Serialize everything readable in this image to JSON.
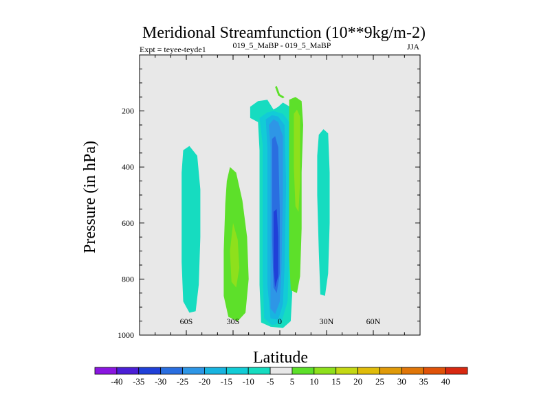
{
  "chart_data": {
    "type": "contour",
    "title": "Meridional Streamfunction (10**9kg/m-2)",
    "left_string": "Expt = teyee-teyde1",
    "center_string": "019_5_MaBP - 019_5_MaBP",
    "right_string": "JJA",
    "xlabel": "Latitude",
    "ylabel": "Pressure (in hPa)",
    "xlim": [
      -90,
      90
    ],
    "ylim": [
      1000,
      0
    ],
    "x_ticks": [
      {
        "value": -60,
        "label": "60S"
      },
      {
        "value": -30,
        "label": "30S"
      },
      {
        "value": 0,
        "label": "0"
      },
      {
        "value": 30,
        "label": "30N"
      },
      {
        "value": 60,
        "label": "60N"
      }
    ],
    "y_ticks": [
      {
        "value": 200,
        "label": "200"
      },
      {
        "value": 400,
        "label": "400"
      },
      {
        "value": 600,
        "label": "600"
      },
      {
        "value": 800,
        "label": "800"
      },
      {
        "value": 1000,
        "label": "1000"
      }
    ],
    "x_minor_step": 10,
    "y_minor_step": 50,
    "plot_background": "#e8e8e8",
    "colorbar": {
      "levels": [
        -40,
        -35,
        -30,
        -25,
        -20,
        -15,
        -10,
        -5,
        5,
        10,
        15,
        20,
        25,
        30,
        35,
        40
      ],
      "colors": [
        "#8a16e0",
        "#4b1fd6",
        "#2040d8",
        "#2a6ee0",
        "#2e96e6",
        "#18b4e0",
        "#12ccd6",
        "#16dcc0",
        "#e8e8e8",
        "#5de02a",
        "#8ee01c",
        "#c4d814",
        "#e0bc0a",
        "#e09a08",
        "#e07608",
        "#e05208",
        "#d82810"
      ]
    },
    "regions": [
      {
        "name": "cell-60s",
        "level_color": "#16dcc0",
        "points": [
          [
            -62,
            340
          ],
          [
            -58,
            325
          ],
          [
            -53,
            360
          ],
          [
            -51,
            480
          ],
          [
            -51,
            650
          ],
          [
            -52,
            820
          ],
          [
            -54,
            915
          ],
          [
            -58,
            920
          ],
          [
            -62,
            880
          ],
          [
            -63,
            740
          ],
          [
            -63,
            560
          ],
          [
            -63,
            420
          ]
        ]
      },
      {
        "name": "cell-30s",
        "level_color": "#5de02a",
        "points": [
          [
            -32,
            400
          ],
          [
            -28,
            420
          ],
          [
            -24,
            520
          ],
          [
            -21,
            650
          ],
          [
            -20,
            800
          ],
          [
            -22,
            920
          ],
          [
            -27,
            950
          ],
          [
            -33,
            935
          ],
          [
            -36,
            860
          ],
          [
            -36,
            700
          ],
          [
            -35,
            530
          ],
          [
            -34,
            450
          ]
        ]
      },
      {
        "name": "cell-30s-core",
        "level_color": "#8ee01c",
        "points": [
          [
            -30,
            600
          ],
          [
            -27,
            660
          ],
          [
            -26,
            760
          ],
          [
            -28,
            830
          ],
          [
            -31,
            810
          ],
          [
            -32,
            700
          ]
        ]
      },
      {
        "name": "hadley-south-10",
        "level_color": "#16dcc0",
        "points": [
          [
            -19,
            185
          ],
          [
            -14,
            165
          ],
          [
            -8,
            160
          ],
          [
            -4,
            195
          ],
          [
            -1,
            185
          ],
          [
            2,
            170
          ],
          [
            8,
            190
          ],
          [
            10,
            230
          ],
          [
            8,
            430
          ],
          [
            7,
            700
          ],
          [
            8,
            850
          ],
          [
            7,
            950
          ],
          [
            2,
            975
          ],
          [
            -6,
            970
          ],
          [
            -12,
            955
          ],
          [
            -13,
            820
          ],
          [
            -13,
            560
          ],
          [
            -13,
            340
          ],
          [
            -14,
            240
          ],
          [
            -19,
            225
          ]
        ]
      },
      {
        "name": "hadley-south-15",
        "level_color": "#12ccd6",
        "points": [
          [
            -13,
            225
          ],
          [
            -8,
            205
          ],
          [
            -4,
            200
          ],
          [
            2,
            210
          ],
          [
            6,
            240
          ],
          [
            7,
            430
          ],
          [
            6,
            720
          ],
          [
            5,
            880
          ],
          [
            1,
            955
          ],
          [
            -5,
            965
          ],
          [
            -10,
            940
          ],
          [
            -11,
            790
          ],
          [
            -11,
            540
          ],
          [
            -11,
            320
          ]
        ]
      },
      {
        "name": "hadley-south-20",
        "level_color": "#18b4e0",
        "points": [
          [
            -9,
            230
          ],
          [
            -5,
            215
          ],
          [
            -1,
            220
          ],
          [
            3,
            250
          ],
          [
            4,
            460
          ],
          [
            3,
            760
          ],
          [
            2,
            890
          ],
          [
            -1,
            945
          ],
          [
            -6,
            940
          ],
          [
            -8,
            820
          ],
          [
            -8,
            570
          ],
          [
            -8,
            330
          ]
        ]
      },
      {
        "name": "hadley-south-25",
        "level_color": "#2e96e6",
        "points": [
          [
            -7,
            250
          ],
          [
            -4,
            230
          ],
          [
            -1,
            240
          ],
          [
            2,
            290
          ],
          [
            2,
            500
          ],
          [
            1,
            770
          ],
          [
            0,
            880
          ],
          [
            -3,
            925
          ],
          [
            -6,
            905
          ],
          [
            -6,
            760
          ],
          [
            -6,
            520
          ],
          [
            -6,
            330
          ]
        ]
      },
      {
        "name": "hadley-south-30",
        "level_color": "#2a6ee0",
        "points": [
          [
            -5,
            300
          ],
          [
            -3,
            290
          ],
          [
            -1,
            330
          ],
          [
            0,
            560
          ],
          [
            0,
            780
          ],
          [
            -2,
            850
          ],
          [
            -4,
            830
          ],
          [
            -5,
            650
          ],
          [
            -5,
            420
          ]
        ]
      },
      {
        "name": "hadley-south-35",
        "level_color": "#2040d8",
        "points": [
          [
            -4,
            560
          ],
          [
            -2,
            550
          ],
          [
            -1,
            650
          ],
          [
            -1,
            790
          ],
          [
            -3,
            830
          ],
          [
            -4,
            760
          ],
          [
            -4,
            640
          ]
        ]
      },
      {
        "name": "hadley-north-5",
        "level_color": "#5de02a",
        "points": [
          [
            6,
            160
          ],
          [
            10,
            150
          ],
          [
            14,
            165
          ],
          [
            15,
            250
          ],
          [
            14,
            420
          ],
          [
            14,
            620
          ],
          [
            13,
            790
          ],
          [
            11,
            850
          ],
          [
            7,
            840
          ],
          [
            6,
            720
          ],
          [
            6,
            450
          ],
          [
            6,
            240
          ]
        ]
      },
      {
        "name": "hadley-north-10",
        "level_color": "#8ee01c",
        "points": [
          [
            9,
            210
          ],
          [
            11,
            195
          ],
          [
            13,
            220
          ],
          [
            13,
            450
          ],
          [
            12,
            560
          ],
          [
            10,
            540
          ],
          [
            9,
            400
          ]
        ]
      },
      {
        "name": "cell-30n",
        "level_color": "#16dcc0",
        "points": [
          [
            25,
            285
          ],
          [
            28,
            265
          ],
          [
            31,
            280
          ],
          [
            32,
            420
          ],
          [
            32,
            600
          ],
          [
            31,
            780
          ],
          [
            29,
            860
          ],
          [
            26,
            855
          ],
          [
            25,
            700
          ],
          [
            24,
            500
          ],
          [
            24,
            360
          ]
        ]
      },
      {
        "name": "streak-upper",
        "level_color": "#5de02a",
        "points": [
          [
            -3,
            115
          ],
          [
            -2,
            110
          ],
          [
            0,
            140
          ],
          [
            3,
            150
          ],
          [
            2,
            155
          ],
          [
            -1,
            145
          ]
        ]
      }
    ]
  }
}
